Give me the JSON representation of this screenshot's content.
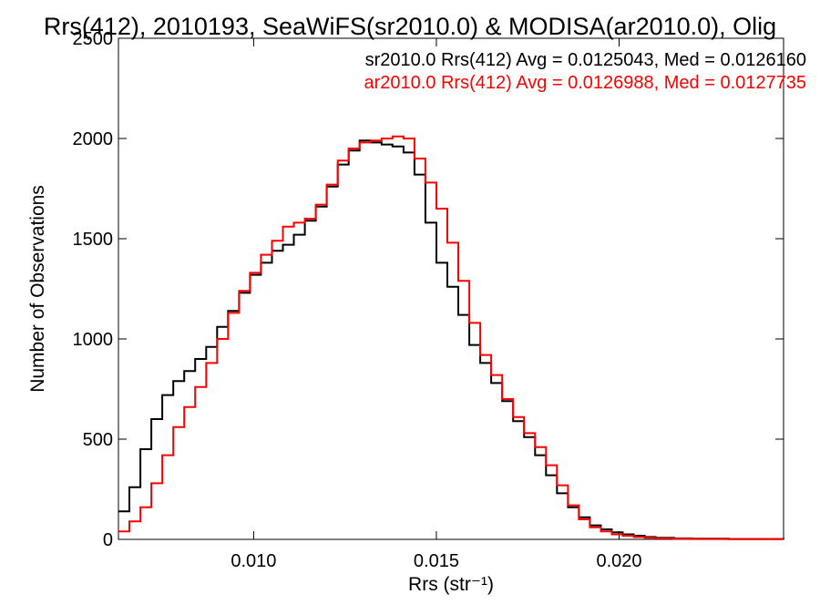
{
  "chart_data": {
    "type": "line",
    "title": "Rrs(412), 2010193, SeaWiFS(sr2010.0) & MODISA(ar2010.0), Olig",
    "xlabel": "Rrs (str⁻¹)",
    "ylabel": "Number of Observations",
    "xlim": [
      0.0063,
      0.0245
    ],
    "ylim": [
      0,
      2500
    ],
    "xticks": [
      0.01,
      0.015,
      0.02
    ],
    "xtick_labels": [
      "0.010",
      "0.015",
      "0.020"
    ],
    "yticks": [
      0,
      500,
      1000,
      1500,
      2000,
      2500
    ],
    "ytick_labels": [
      "0",
      "500",
      "1000",
      "1500",
      "2000",
      "2500"
    ],
    "grid": false,
    "legend_position": "top-right",
    "series": [
      {
        "name": "sr2010.0 Rrs(412) Avg = 0.0125043, Med = 0.0126160",
        "color": "#000000",
        "points": [
          [
            0.0063,
            140
          ],
          [
            0.0066,
            260
          ],
          [
            0.0069,
            450
          ],
          [
            0.0072,
            600
          ],
          [
            0.0075,
            720
          ],
          [
            0.0078,
            790
          ],
          [
            0.0081,
            840
          ],
          [
            0.0084,
            900
          ],
          [
            0.0087,
            960
          ],
          [
            0.009,
            1060
          ],
          [
            0.0093,
            1140
          ],
          [
            0.0096,
            1230
          ],
          [
            0.0099,
            1320
          ],
          [
            0.0102,
            1380
          ],
          [
            0.0105,
            1440
          ],
          [
            0.0108,
            1470
          ],
          [
            0.0111,
            1520
          ],
          [
            0.0114,
            1590
          ],
          [
            0.0117,
            1660
          ],
          [
            0.012,
            1760
          ],
          [
            0.0123,
            1870
          ],
          [
            0.0126,
            1940
          ],
          [
            0.0129,
            1990
          ],
          [
            0.0132,
            1980
          ],
          [
            0.0135,
            1970
          ],
          [
            0.0138,
            1960
          ],
          [
            0.0141,
            1930
          ],
          [
            0.0144,
            1820
          ],
          [
            0.0147,
            1580
          ],
          [
            0.015,
            1380
          ],
          [
            0.0153,
            1260
          ],
          [
            0.0156,
            1120
          ],
          [
            0.0159,
            970
          ],
          [
            0.0162,
            880
          ],
          [
            0.0165,
            780
          ],
          [
            0.0168,
            690
          ],
          [
            0.0171,
            590
          ],
          [
            0.0174,
            510
          ],
          [
            0.0177,
            420
          ],
          [
            0.018,
            320
          ],
          [
            0.0183,
            230
          ],
          [
            0.0186,
            160
          ],
          [
            0.0189,
            110
          ],
          [
            0.0192,
            70
          ],
          [
            0.0195,
            50
          ],
          [
            0.0198,
            35
          ],
          [
            0.0201,
            25
          ],
          [
            0.0204,
            18
          ],
          [
            0.0207,
            12
          ],
          [
            0.021,
            8
          ],
          [
            0.0215,
            5
          ],
          [
            0.022,
            3
          ],
          [
            0.023,
            2
          ],
          [
            0.0245,
            1
          ]
        ]
      },
      {
        "name": "ar2010.0 Rrs(412) Avg = 0.0126988, Med = 0.0127735",
        "color": "#ff0000",
        "points": [
          [
            0.0063,
            40
          ],
          [
            0.0066,
            90
          ],
          [
            0.0069,
            160
          ],
          [
            0.0072,
            280
          ],
          [
            0.0075,
            420
          ],
          [
            0.0078,
            560
          ],
          [
            0.0081,
            660
          ],
          [
            0.0084,
            760
          ],
          [
            0.0087,
            880
          ],
          [
            0.009,
            1000
          ],
          [
            0.0093,
            1130
          ],
          [
            0.0096,
            1240
          ],
          [
            0.0099,
            1330
          ],
          [
            0.0102,
            1420
          ],
          [
            0.0105,
            1490
          ],
          [
            0.0108,
            1560
          ],
          [
            0.0111,
            1580
          ],
          [
            0.0114,
            1600
          ],
          [
            0.0117,
            1670
          ],
          [
            0.012,
            1770
          ],
          [
            0.0123,
            1890
          ],
          [
            0.0126,
            1950
          ],
          [
            0.0129,
            1980
          ],
          [
            0.0132,
            1990
          ],
          [
            0.0135,
            2000
          ],
          [
            0.0138,
            2010
          ],
          [
            0.0141,
            2000
          ],
          [
            0.0144,
            1900
          ],
          [
            0.0147,
            1780
          ],
          [
            0.015,
            1650
          ],
          [
            0.0153,
            1480
          ],
          [
            0.0156,
            1290
          ],
          [
            0.0159,
            1080
          ],
          [
            0.0162,
            920
          ],
          [
            0.0165,
            820
          ],
          [
            0.0168,
            700
          ],
          [
            0.0171,
            610
          ],
          [
            0.0174,
            530
          ],
          [
            0.0177,
            460
          ],
          [
            0.018,
            370
          ],
          [
            0.0183,
            270
          ],
          [
            0.0186,
            170
          ],
          [
            0.0189,
            100
          ],
          [
            0.0192,
            60
          ],
          [
            0.0195,
            40
          ],
          [
            0.0198,
            25
          ],
          [
            0.0201,
            18
          ],
          [
            0.0204,
            12
          ],
          [
            0.0207,
            8
          ],
          [
            0.021,
            5
          ],
          [
            0.0215,
            3
          ],
          [
            0.022,
            2
          ],
          [
            0.023,
            1
          ],
          [
            0.0245,
            1
          ]
        ]
      }
    ]
  }
}
